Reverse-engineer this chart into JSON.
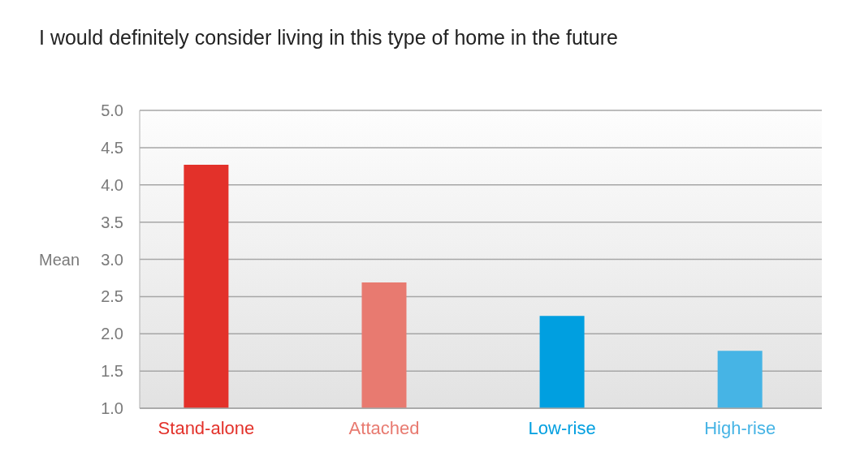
{
  "chart_data": {
    "type": "bar",
    "title": "I would definitely consider living in this type of home in the future",
    "ylabel": "Mean",
    "categories": [
      "Stand-alone",
      "Attached",
      "Low-rise",
      "High-rise"
    ],
    "values": [
      4.27,
      2.69,
      2.24,
      1.77
    ],
    "colors": [
      "#e3312a",
      "#e87a70",
      "#009fe0",
      "#46b4e5"
    ],
    "ylim": [
      1,
      5
    ],
    "yticks": [
      {
        "value": 1,
        "label": "1.0"
      },
      {
        "value": 1.5,
        "label": "1.5"
      },
      {
        "value": 2,
        "label": "2.0"
      },
      {
        "value": 2.5,
        "label": "2.5"
      },
      {
        "value": 3,
        "label": "3.0"
      },
      {
        "value": 3.5,
        "label": "3.5"
      },
      {
        "value": 4,
        "label": "4.0"
      },
      {
        "value": 4.5,
        "label": "4.5"
      },
      {
        "value": 5,
        "label": "5.0"
      }
    ],
    "grid": "y"
  }
}
